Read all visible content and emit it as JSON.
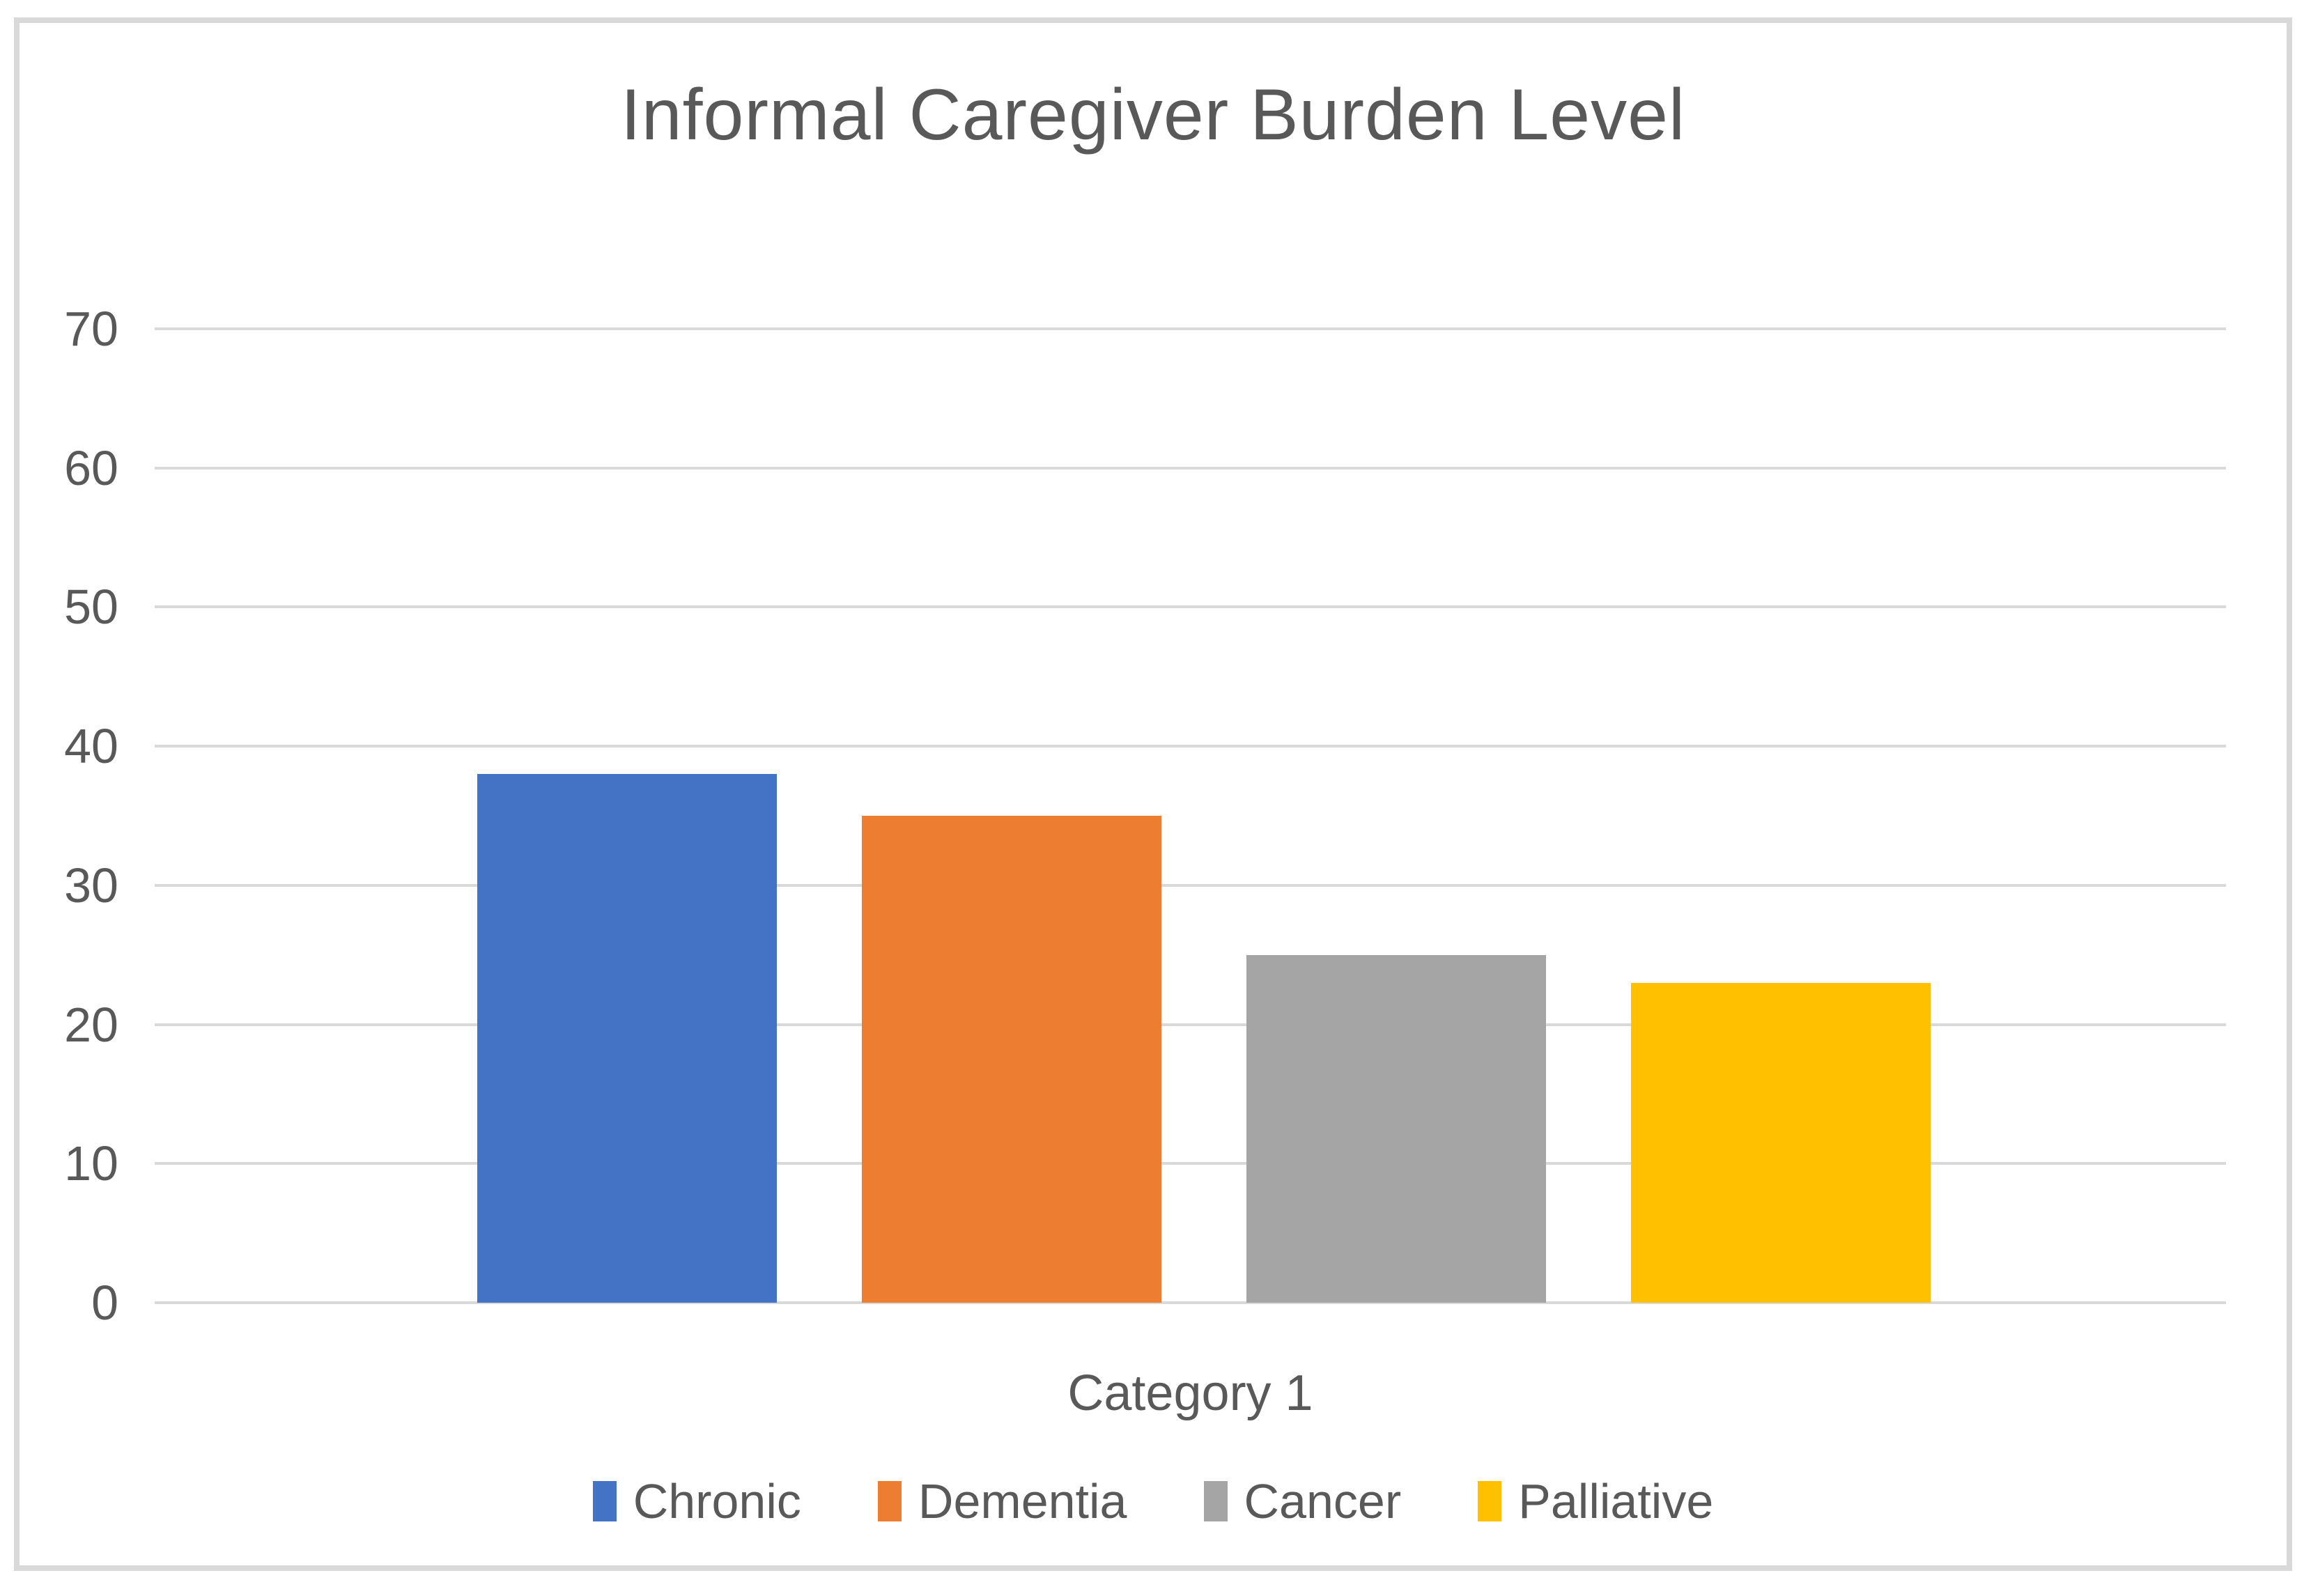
{
  "chart": {
    "title": "Informal Caregiver Burden Level",
    "xlabel": "Category 1"
  },
  "colors": {
    "frame_border": "#D9D9D9",
    "gridline": "#D9D9D9",
    "text": "#595959",
    "background": "#FFFFFF"
  },
  "chart_data": {
    "type": "bar",
    "title": "Informal Caregiver Burden Level",
    "categories": [
      "Category 1"
    ],
    "series": [
      {
        "name": "Chronic",
        "values": [
          38
        ],
        "color": "#4472C4"
      },
      {
        "name": "Dementia",
        "values": [
          35
        ],
        "color": "#ED7D31"
      },
      {
        "name": "Cancer",
        "values": [
          25
        ],
        "color": "#A5A5A5"
      },
      {
        "name": "Palliative",
        "values": [
          23
        ],
        "color": "#FFC000"
      }
    ],
    "xlabel": "Category 1",
    "ylabel": "",
    "ylim": [
      0,
      70
    ],
    "yticks": [
      70,
      60,
      50,
      40,
      30,
      20,
      10,
      0
    ],
    "grid": true,
    "legend_position": "bottom",
    "legend_labels": [
      "Chronic",
      "Dementia",
      "Cancer",
      "Palliative"
    ]
  }
}
